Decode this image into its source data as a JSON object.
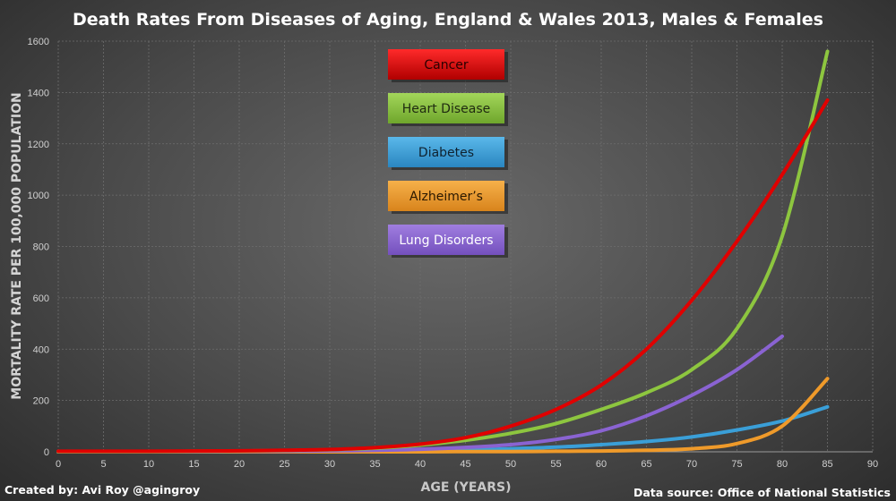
{
  "credits": {
    "created_by": "Created by: Avi Roy @agingroy",
    "data_source": "Data source: Office of National Statistics"
  },
  "chart_data": {
    "type": "line",
    "title": "Death Rates From Diseases of Aging, England & Wales 2013, Males & Females",
    "xlabel": "AGE (YEARS)",
    "ylabel": "MORTALITY RATE PER 100,000 POPULATION",
    "xlim": [
      0,
      90
    ],
    "ylim": [
      0,
      1600
    ],
    "x_ticks": [
      0,
      5,
      10,
      15,
      20,
      25,
      30,
      35,
      40,
      45,
      50,
      55,
      60,
      65,
      70,
      75,
      80,
      85,
      90
    ],
    "y_ticks": [
      0,
      200,
      400,
      600,
      800,
      1000,
      1200,
      1400,
      1600
    ],
    "grid": true,
    "legend_position": "top-center",
    "series": [
      {
        "name": "Cancer",
        "color": "#e00000",
        "x": [
          0,
          5,
          10,
          15,
          20,
          25,
          30,
          35,
          40,
          45,
          50,
          55,
          60,
          65,
          70,
          75,
          80,
          85
        ],
        "y": [
          2,
          2,
          2,
          3,
          4,
          6,
          9,
          16,
          30,
          55,
          100,
          165,
          260,
          400,
          590,
          820,
          1080,
          1370
        ]
      },
      {
        "name": "Heart Disease",
        "color": "#8dc63f",
        "x": [
          0,
          5,
          10,
          15,
          20,
          25,
          30,
          35,
          40,
          45,
          50,
          55,
          60,
          65,
          70,
          75,
          80,
          85
        ],
        "y": [
          1,
          1,
          1,
          2,
          3,
          5,
          8,
          14,
          26,
          45,
          72,
          110,
          165,
          230,
          320,
          480,
          840,
          1560
        ]
      },
      {
        "name": "Diabetes",
        "color": "#3a9fd8",
        "x": [
          0,
          5,
          10,
          15,
          20,
          25,
          30,
          35,
          40,
          45,
          50,
          55,
          60,
          65,
          70,
          75,
          80,
          85
        ],
        "y": [
          0,
          0,
          0,
          0,
          1,
          1,
          2,
          3,
          5,
          7,
          12,
          18,
          28,
          40,
          58,
          85,
          120,
          175
        ]
      },
      {
        "name": "Alzheimer’s",
        "color": "#ef9a2a",
        "x": [
          0,
          5,
          10,
          15,
          20,
          25,
          30,
          35,
          40,
          45,
          50,
          55,
          60,
          65,
          70,
          75,
          80,
          85
        ],
        "y": [
          0,
          0,
          0,
          0,
          0,
          0,
          0,
          0,
          0,
          1,
          1,
          2,
          3,
          6,
          12,
          32,
          100,
          285
        ]
      },
      {
        "name": "Lung Disorders",
        "color": "#8a63d2",
        "x": [
          0,
          5,
          10,
          15,
          20,
          25,
          30,
          35,
          40,
          45,
          50,
          55,
          60,
          65,
          70,
          75,
          80
        ],
        "y": [
          1,
          1,
          1,
          1,
          2,
          2,
          4,
          6,
          10,
          17,
          28,
          48,
          82,
          140,
          220,
          320,
          450
        ]
      }
    ]
  }
}
